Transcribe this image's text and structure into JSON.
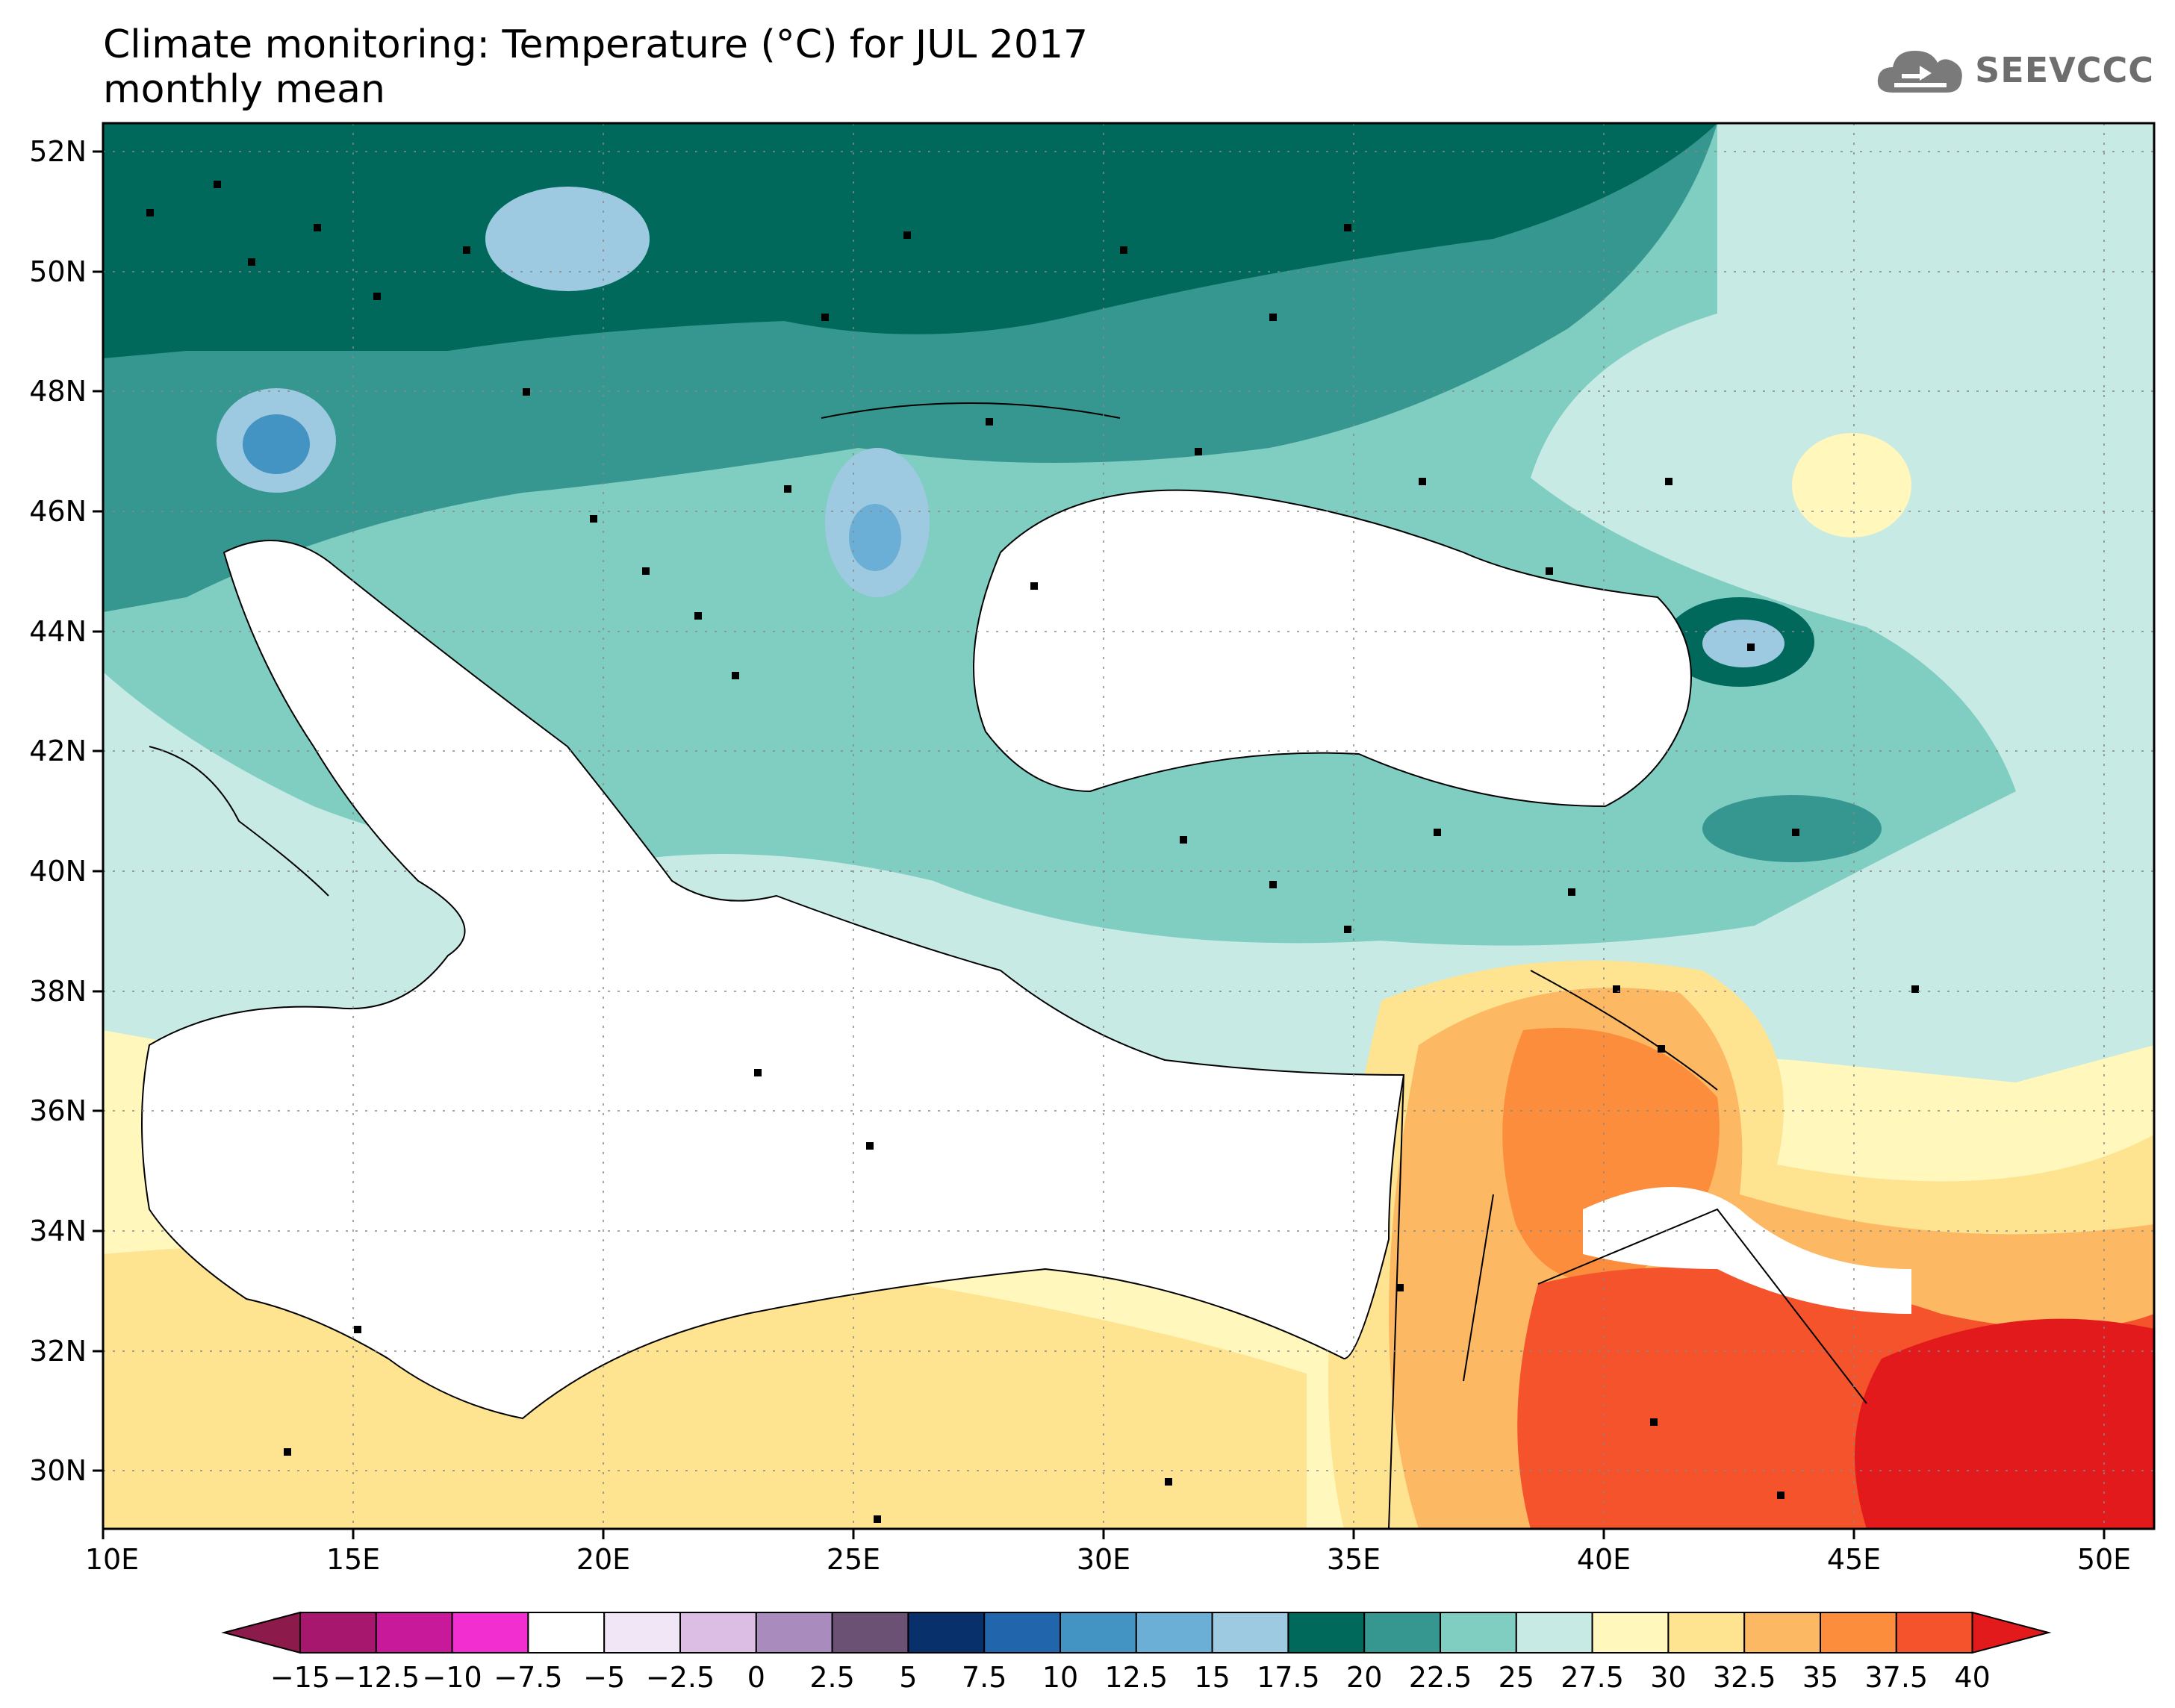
{
  "header": {
    "title_line1": "Climate monitoring: Temperature (°C) for JUL 2017",
    "title_line2": "monthly mean"
  },
  "logo": {
    "icon": "cloud-logo-icon",
    "text": "SEEVCCC"
  },
  "map": {
    "lat_labels": [
      "52N",
      "50N",
      "48N",
      "46N",
      "44N",
      "42N",
      "40N",
      "38N",
      "36N",
      "34N",
      "32N",
      "30N"
    ],
    "lon_labels": [
      "10E",
      "15E",
      "20E",
      "25E",
      "30E",
      "35E",
      "40E",
      "45E",
      "50E"
    ]
  },
  "colorbar": {
    "tick_labels": [
      "−15",
      "−12.5",
      "−10",
      "−7.5",
      "−5",
      "−2.5",
      "0",
      "2.5",
      "5",
      "7.5",
      "10",
      "12.5",
      "15",
      "17.5",
      "20",
      "22.5",
      "25",
      "27.5",
      "30",
      "32.5",
      "35",
      "37.5",
      "40"
    ],
    "colors": [
      "#8c1a4b",
      "#a8176e",
      "#c8199a",
      "#f22ed0",
      "#ffffff",
      "#f0e6f5",
      "#dcbde3",
      "#a98bbd",
      "#6b5275",
      "#08306b",
      "#2166ac",
      "#4393c3",
      "#6baed6",
      "#9ecae1",
      "#00695c",
      "#35978f",
      "#80cdc1",
      "#c7eae5",
      "#fff7bc",
      "#fee391",
      "#fdb863",
      "#fc8d3c",
      "#f4532c",
      "#e31a1c"
    ]
  },
  "legend_fields": {
    "color_meaning": "monthly mean temperature (°C)"
  }
}
